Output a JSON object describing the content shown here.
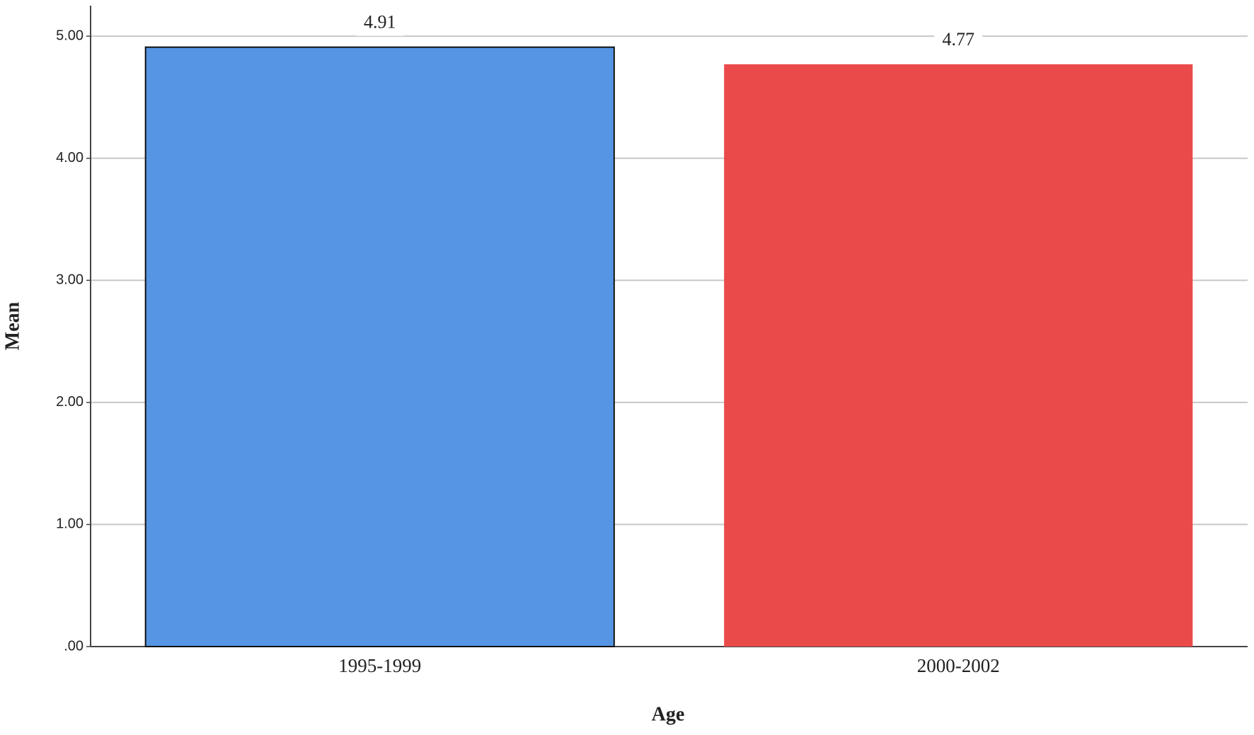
{
  "chart_data": {
    "type": "bar",
    "x_label": "Age",
    "y_label": "Mean",
    "categories": [
      "1995-1999",
      "2000-2002"
    ],
    "values": [
      4.91,
      4.77
    ],
    "colors": [
      "#5595e4",
      "#eb4a4b"
    ],
    "ylim": [
      0,
      5.25
    ],
    "yticks": [
      {
        "value": 0,
        "label": ".00"
      },
      {
        "value": 1,
        "label": "1.00"
      },
      {
        "value": 2,
        "label": "2.00"
      },
      {
        "value": 3,
        "label": "3.00"
      },
      {
        "value": 4,
        "label": "4.00"
      },
      {
        "value": 5,
        "label": "5.00"
      }
    ],
    "grid": true
  }
}
